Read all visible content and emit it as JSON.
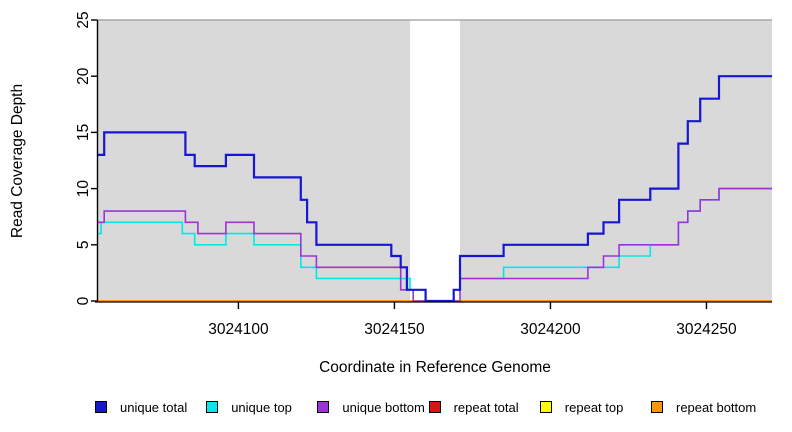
{
  "figure": {
    "background": "#ffffff",
    "plot_background": "#d9d9d9",
    "axis_color": "#000000",
    "xlabel": "Coordinate in Reference Genome",
    "ylabel": "Read Coverage Depth"
  },
  "chart_data": {
    "type": "line",
    "subtype": "step",
    "title": "",
    "xlabel": "Coordinate in Reference Genome",
    "ylabel": "Read Coverage Depth",
    "xlim": [
      3024055,
      3024271
    ],
    "ylim": [
      0,
      25
    ],
    "x_ticks": [
      3024100,
      3024150,
      3024200,
      3024250
    ],
    "y_ticks": [
      0,
      5,
      10,
      15,
      20,
      25
    ],
    "grid": false,
    "legend_position": "bottom",
    "gap_region": {
      "from": 3024155,
      "to": 3024171,
      "color": "#ffffff"
    },
    "series": [
      {
        "name": "unique total",
        "color": "#1717d1",
        "points": [
          [
            3024055,
            13
          ],
          [
            3024057,
            15
          ],
          [
            3024083,
            13
          ],
          [
            3024086,
            12
          ],
          [
            3024096,
            13
          ],
          [
            3024105,
            11
          ],
          [
            3024120,
            9
          ],
          [
            3024122,
            7
          ],
          [
            3024125,
            5
          ],
          [
            3024149,
            4
          ],
          [
            3024152,
            3
          ],
          [
            3024154,
            1
          ],
          [
            3024160,
            0
          ],
          [
            3024169,
            1
          ],
          [
            3024171,
            4
          ],
          [
            3024185,
            5
          ],
          [
            3024212,
            6
          ],
          [
            3024217,
            7
          ],
          [
            3024222,
            9
          ],
          [
            3024232,
            10
          ],
          [
            3024241,
            14
          ],
          [
            3024244,
            16
          ],
          [
            3024248,
            18
          ],
          [
            3024254,
            20
          ],
          [
            3024271,
            20
          ]
        ]
      },
      {
        "name": "unique top",
        "color": "#00e8e8",
        "points": [
          [
            3024055,
            6
          ],
          [
            3024056,
            7
          ],
          [
            3024082,
            6
          ],
          [
            3024086,
            5
          ],
          [
            3024096,
            6
          ],
          [
            3024105,
            5
          ],
          [
            3024120,
            3
          ],
          [
            3024125,
            2
          ],
          [
            3024155,
            1
          ],
          [
            3024160,
            0
          ],
          [
            3024169,
            1
          ],
          [
            3024171,
            2
          ],
          [
            3024185,
            3
          ],
          [
            3024222,
            4
          ],
          [
            3024232,
            5
          ],
          [
            3024241,
            7
          ],
          [
            3024244,
            8
          ],
          [
            3024248,
            9
          ],
          [
            3024254,
            10
          ],
          [
            3024271,
            10
          ]
        ]
      },
      {
        "name": "unique bottom",
        "color": "#9d32d6",
        "points": [
          [
            3024055,
            7
          ],
          [
            3024057,
            8
          ],
          [
            3024083,
            7
          ],
          [
            3024087,
            6
          ],
          [
            3024096,
            7
          ],
          [
            3024105,
            6
          ],
          [
            3024120,
            4
          ],
          [
            3024125,
            3
          ],
          [
            3024152,
            1
          ],
          [
            3024156,
            0
          ],
          [
            3024171,
            2
          ],
          [
            3024212,
            3
          ],
          [
            3024217,
            4
          ],
          [
            3024222,
            5
          ],
          [
            3024241,
            7
          ],
          [
            3024244,
            8
          ],
          [
            3024248,
            9
          ],
          [
            3024254,
            10
          ],
          [
            3024271,
            10
          ]
        ]
      },
      {
        "name": "repeat total",
        "color": "#dd1111",
        "points": [
          [
            3024055,
            0
          ],
          [
            3024271,
            0
          ]
        ]
      },
      {
        "name": "repeat top",
        "color": "#ffff00",
        "points": [
          [
            3024055,
            0
          ],
          [
            3024271,
            0
          ]
        ]
      },
      {
        "name": "repeat bottom",
        "color": "#ff9500",
        "points": [
          [
            3024055,
            0
          ],
          [
            3024271,
            0
          ]
        ]
      }
    ],
    "legend": [
      {
        "label": "unique total",
        "color": "#1717d1"
      },
      {
        "label": "unique top",
        "color": "#00e8e8"
      },
      {
        "label": "unique bottom",
        "color": "#9d32d6"
      },
      {
        "label": "repeat total",
        "color": "#dd1111"
      },
      {
        "label": "repeat top",
        "color": "#ffff00"
      },
      {
        "label": "repeat bottom",
        "color": "#ff9500"
      }
    ]
  }
}
